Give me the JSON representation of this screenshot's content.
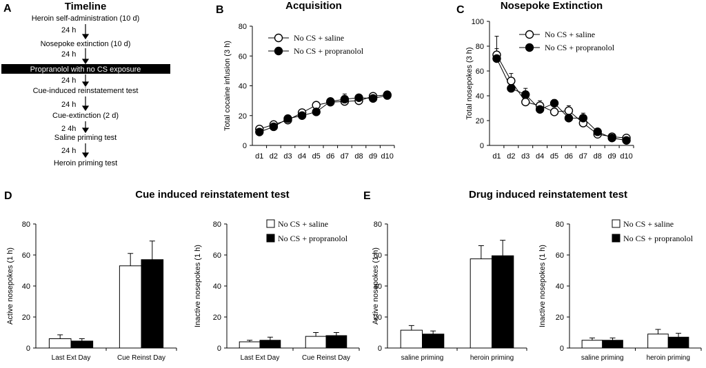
{
  "timeline": {
    "label": "A",
    "title": "Timeline",
    "steps": [
      "Heroin self-administration (10 d)",
      "Nosepoke extinction (10 d)",
      "Propranolol with no CS exposure",
      "Cue-induced reinstatement test",
      "Cue-extinction (2 d)",
      "Saline priming test",
      "Heroin priming test"
    ],
    "intervals": [
      "24 h",
      "24 h",
      "24 h",
      "24 h",
      "2 4h",
      "24 h"
    ]
  },
  "sections": {
    "d_label": "D",
    "d_title": "Cue induced reinstatement test",
    "e_label": "E",
    "e_title": "Drug induced reinstatement test"
  },
  "chart_data": [
    {
      "id": "B",
      "panel_label": "B",
      "type": "line",
      "title": "Acquisition",
      "xlabel": "",
      "ylabel": "Total cocaine infusion (3 h)",
      "categories": [
        "d1",
        "d2",
        "d3",
        "d4",
        "d5",
        "d6",
        "d7",
        "d8",
        "d9",
        "d10"
      ],
      "ylim": [
        0,
        80
      ],
      "yticks": [
        0,
        20,
        40,
        60,
        80
      ],
      "legend": "top-left",
      "series": [
        {
          "name": "No CS + saline",
          "marker": "open-circle",
          "values": [
            11,
            14,
            17,
            22,
            27,
            29,
            29.5,
            30,
            33,
            34
          ],
          "errors": [
            1,
            1,
            1.5,
            1.5,
            2,
            2,
            2,
            2,
            2,
            2
          ]
        },
        {
          "name": "No CS + propranolol",
          "marker": "filled-circle",
          "values": [
            9,
            12.5,
            18,
            20,
            22.5,
            29.5,
            31,
            32,
            31.5,
            33.5
          ],
          "errors": [
            1,
            1,
            1.5,
            1.5,
            2,
            2,
            3.5,
            2,
            2,
            2
          ]
        }
      ]
    },
    {
      "id": "C",
      "panel_label": "C",
      "type": "line",
      "title": "Nosepoke Extinction",
      "xlabel": "",
      "ylabel": "Total nosepokes (3 h)",
      "categories": [
        "d1",
        "d2",
        "d3",
        "d4",
        "d5",
        "d6",
        "d7",
        "d8",
        "d9",
        "d10"
      ],
      "ylim": [
        0,
        100
      ],
      "yticks": [
        0,
        20,
        40,
        60,
        80,
        100
      ],
      "legend": "top-right",
      "series": [
        {
          "name": "No CS + saline",
          "marker": "open-circle",
          "values": [
            73,
            52,
            35,
            32,
            27,
            28,
            18,
            9,
            7,
            6
          ],
          "errors": [
            15,
            6,
            4,
            4,
            3,
            4,
            3,
            2,
            2,
            1.5
          ]
        },
        {
          "name": "No CS + propranolol",
          "marker": "filled-circle",
          "values": [
            70,
            46,
            41,
            29,
            34,
            22,
            22,
            11,
            6,
            4
          ],
          "errors": [
            8,
            4,
            5,
            3,
            3,
            3,
            4,
            2,
            1.5,
            1
          ]
        }
      ]
    },
    {
      "id": "D1",
      "type": "bar",
      "title": "",
      "xlabel": "",
      "ylabel": "Active nosepokes (1 h)",
      "categories": [
        "Last Ext Day",
        "Cue Reinst Day"
      ],
      "ylim": [
        0,
        80
      ],
      "yticks": [
        0,
        20,
        40,
        60,
        80
      ],
      "legend": "none",
      "series": [
        {
          "name": "No CS + saline",
          "color": "#ffffff",
          "values": [
            6,
            53
          ],
          "errors": [
            2.5,
            8
          ]
        },
        {
          "name": "No CS + propranolol",
          "color": "#000000",
          "values": [
            4.5,
            57
          ],
          "errors": [
            1.5,
            12
          ]
        }
      ]
    },
    {
      "id": "D2",
      "type": "bar",
      "title": "",
      "xlabel": "",
      "ylabel": "Inactive nosepokes (1 h)",
      "categories": [
        "Last Ext Day",
        "Cue Reinst Day"
      ],
      "ylim": [
        0,
        80
      ],
      "yticks": [
        0,
        20,
        40,
        60,
        80
      ],
      "legend": "top-right",
      "series": [
        {
          "name": "No CS + saline",
          "color": "#ffffff",
          "values": [
            4,
            7.5
          ],
          "errors": [
            1,
            2.5
          ]
        },
        {
          "name": "No CS + propranolol",
          "color": "#000000",
          "values": [
            5,
            8
          ],
          "errors": [
            2,
            2
          ]
        }
      ]
    },
    {
      "id": "E1",
      "type": "bar",
      "title": "",
      "xlabel": "",
      "ylabel": "Active nosepokes (1 h)",
      "categories": [
        "saline priming",
        "heroin priming"
      ],
      "ylim": [
        0,
        80
      ],
      "yticks": [
        0,
        20,
        40,
        60,
        80
      ],
      "legend": "none",
      "series": [
        {
          "name": "No CS + saline",
          "color": "#ffffff",
          "values": [
            11.5,
            57.5
          ],
          "errors": [
            3,
            8.5
          ]
        },
        {
          "name": "No CS + propranolol",
          "color": "#000000",
          "values": [
            9,
            59.5
          ],
          "errors": [
            2,
            10
          ]
        }
      ]
    },
    {
      "id": "E2",
      "type": "bar",
      "title": "",
      "xlabel": "",
      "ylabel": "Inactive nosepokes (1 h)",
      "categories": [
        "saline priming",
        "heroin priming"
      ],
      "ylim": [
        0,
        80
      ],
      "yticks": [
        0,
        20,
        40,
        60,
        80
      ],
      "legend": "top-right",
      "series": [
        {
          "name": "No CS + saline",
          "color": "#ffffff",
          "values": [
            5,
            9
          ],
          "errors": [
            1.5,
            3
          ]
        },
        {
          "name": "No CS + propranolol",
          "color": "#000000",
          "values": [
            5,
            7
          ],
          "errors": [
            1.5,
            2.5
          ]
        }
      ]
    }
  ]
}
